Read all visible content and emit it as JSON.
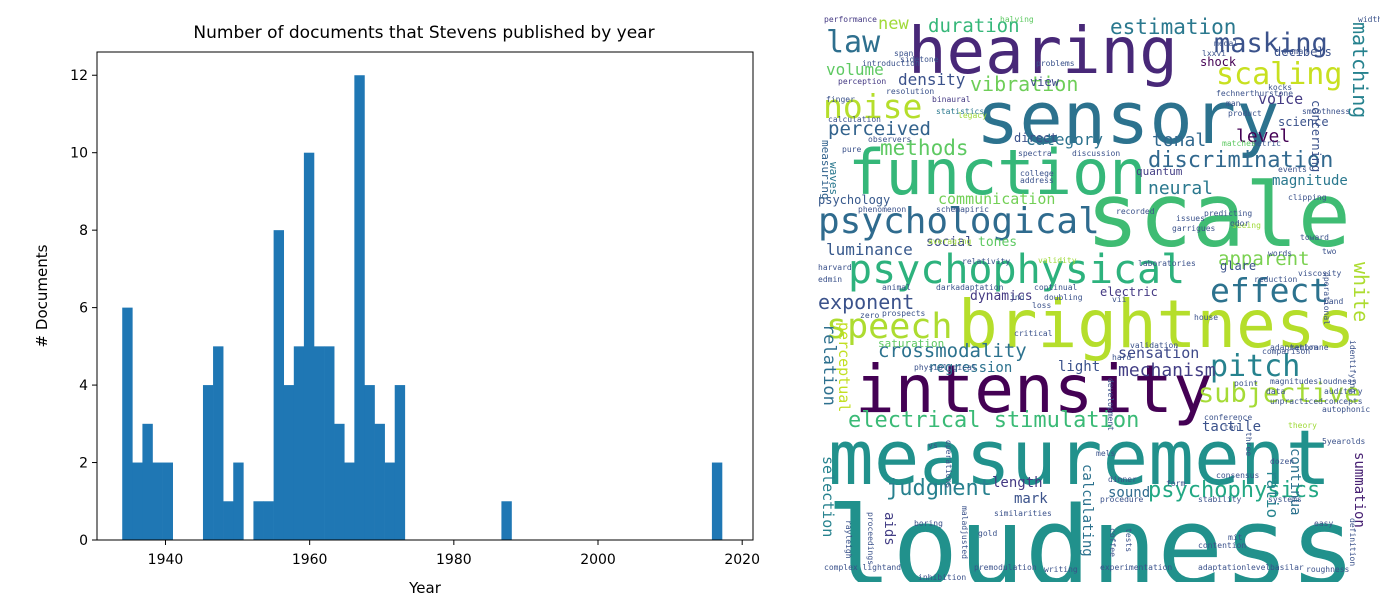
{
  "chart_data": {
    "type": "bar",
    "title": "Number of documents that Stevens published by year",
    "xlabel": "Year",
    "ylabel": "# Documents",
    "xlim": [
      1930.5,
      2021.5
    ],
    "ylim": [
      0,
      12.6
    ],
    "xticks": [
      1940,
      1960,
      1980,
      2000,
      2020
    ],
    "yticks": [
      0,
      2,
      4,
      6,
      8,
      10,
      12
    ],
    "bar_color": "#1f77b4",
    "bins": [
      {
        "start": 1934,
        "end": 1935.4,
        "value": 6
      },
      {
        "start": 1935.4,
        "end": 1936.8,
        "value": 2
      },
      {
        "start": 1936.8,
        "end": 1938.2,
        "value": 3
      },
      {
        "start": 1938.2,
        "end": 1939.6,
        "value": 2
      },
      {
        "start": 1939.6,
        "end": 1941,
        "value": 2
      },
      {
        "start": 1945.2,
        "end": 1946.6,
        "value": 4
      },
      {
        "start": 1946.6,
        "end": 1948,
        "value": 5
      },
      {
        "start": 1948,
        "end": 1949.4,
        "value": 1
      },
      {
        "start": 1949.4,
        "end": 1950.8,
        "value": 2
      },
      {
        "start": 1952.2,
        "end": 1953.6,
        "value": 1
      },
      {
        "start": 1953.6,
        "end": 1955,
        "value": 1
      },
      {
        "start": 1955,
        "end": 1956.4,
        "value": 8
      },
      {
        "start": 1956.4,
        "end": 1957.8,
        "value": 4
      },
      {
        "start": 1957.8,
        "end": 1959.2,
        "value": 5
      },
      {
        "start": 1959.2,
        "end": 1960.6,
        "value": 10
      },
      {
        "start": 1960.6,
        "end": 1962,
        "value": 5
      },
      {
        "start": 1962,
        "end": 1963.4,
        "value": 5
      },
      {
        "start": 1963.4,
        "end": 1964.8,
        "value": 3
      },
      {
        "start": 1964.8,
        "end": 1966.2,
        "value": 2
      },
      {
        "start": 1966.2,
        "end": 1967.6,
        "value": 12
      },
      {
        "start": 1967.6,
        "end": 1969,
        "value": 4
      },
      {
        "start": 1969,
        "end": 1970.4,
        "value": 3
      },
      {
        "start": 1970.4,
        "end": 1971.8,
        "value": 2
      },
      {
        "start": 1971.8,
        "end": 1973.2,
        "value": 4
      },
      {
        "start": 1986.6,
        "end": 1988,
        "value": 1
      },
      {
        "start": 2015.8,
        "end": 2017.2,
        "value": 2
      }
    ]
  },
  "wordcloud": {
    "words": [
      {
        "text": "loudness",
        "color": "#21918c"
      },
      {
        "text": "measurement",
        "color": "#21918c"
      },
      {
        "text": "intensity",
        "color": "#440154"
      },
      {
        "text": "brightness",
        "color": "#b5de2b"
      },
      {
        "text": "sensory",
        "color": "#2c728e"
      },
      {
        "text": "scale",
        "color": "#3fbc73"
      },
      {
        "text": "function",
        "color": "#35b779"
      },
      {
        "text": "hearing",
        "color": "#482878"
      },
      {
        "text": "psychophysical",
        "color": "#2db27d"
      },
      {
        "text": "psychological",
        "color": "#2f6b8e"
      },
      {
        "text": "speech",
        "color": "#addc30"
      },
      {
        "text": "effect",
        "color": "#2c728e"
      },
      {
        "text": "pitch",
        "color": "#26828e"
      },
      {
        "text": "noise",
        "color": "#b5de2b"
      },
      {
        "text": "law",
        "color": "#2e6f8e"
      },
      {
        "text": "masking",
        "color": "#3b528b"
      },
      {
        "text": "scaling",
        "color": "#c8e020"
      },
      {
        "text": "subjective",
        "color": "#a5db36"
      },
      {
        "text": "electrical stimulation",
        "color": "#3aba76"
      },
      {
        "text": "psychophysics",
        "color": "#22a884"
      },
      {
        "text": "judgment",
        "color": "#27808e"
      },
      {
        "text": "discrimination",
        "color": "#31688e"
      },
      {
        "text": "methods",
        "color": "#5ec962"
      },
      {
        "text": "perceived",
        "color": "#33638d"
      },
      {
        "text": "estimation",
        "color": "#2a788e"
      },
      {
        "text": "duration",
        "color": "#35b779"
      },
      {
        "text": "vibration",
        "color": "#6ece58"
      },
      {
        "text": "crossmodality",
        "color": "#2c728e"
      },
      {
        "text": "exponent",
        "color": "#3b528b"
      },
      {
        "text": "matching",
        "color": "#26828e"
      },
      {
        "text": "white",
        "color": "#addc30"
      },
      {
        "text": "apparent",
        "color": "#7ad151"
      },
      {
        "text": "neural",
        "color": "#2a788e"
      },
      {
        "text": "mechanism",
        "color": "#433e85"
      },
      {
        "text": "sensation",
        "color": "#3e4989"
      },
      {
        "text": "tonal",
        "color": "#31688e"
      },
      {
        "text": "level",
        "color": "#440154"
      },
      {
        "text": "category",
        "color": "#2c728e"
      },
      {
        "text": "density",
        "color": "#3b528b"
      },
      {
        "text": "volume",
        "color": "#5ec962"
      },
      {
        "text": "new",
        "color": "#a0da39"
      },
      {
        "text": "voice",
        "color": "#443a83"
      },
      {
        "text": "luminance",
        "color": "#38598c"
      },
      {
        "text": "communication",
        "color": "#73d056"
      },
      {
        "text": "magnitude",
        "color": "#2a788e"
      },
      {
        "text": "relation",
        "color": "#2d708e"
      },
      {
        "text": "perceptual",
        "color": "#c2df23"
      },
      {
        "text": "selection",
        "color": "#26828e"
      },
      {
        "text": "ratio",
        "color": "#25848e"
      },
      {
        "text": "continua",
        "color": "#2c728e"
      },
      {
        "text": "summation",
        "color": "#482173"
      },
      {
        "text": "regression",
        "color": "#2c728e"
      },
      {
        "text": "tactile",
        "color": "#3b528b"
      },
      {
        "text": "sound",
        "color": "#2f6b8e"
      },
      {
        "text": "length",
        "color": "#443983"
      },
      {
        "text": "mark",
        "color": "#3b528b"
      },
      {
        "text": "aids",
        "color": "#433e85"
      },
      {
        "text": "calculating",
        "color": "#2c728e"
      },
      {
        "text": "light",
        "color": "#3b528b"
      },
      {
        "text": "dynamics",
        "color": "#443983"
      },
      {
        "text": "tones",
        "color": "#5ec962"
      },
      {
        "text": "social",
        "color": "#3e4989"
      },
      {
        "text": "glare",
        "color": "#3b528b"
      },
      {
        "text": "electric",
        "color": "#443983"
      },
      {
        "text": "science",
        "color": "#3b528b"
      },
      {
        "text": "concerning",
        "color": "#3b528b"
      },
      {
        "text": "shock",
        "color": "#440154"
      },
      {
        "text": "view",
        "color": "#3e4989"
      },
      {
        "text": "quantum",
        "color": "#433e85"
      },
      {
        "text": "direct",
        "color": "#3b528b"
      },
      {
        "text": "psychology",
        "color": "#38598c"
      },
      {
        "text": "measuring",
        "color": "#33638d"
      },
      {
        "text": "waves",
        "color": "#2a788e"
      },
      {
        "text": "saturation",
        "color": "#5ec962"
      },
      {
        "text": "decibels",
        "color": "#3b528b"
      },
      {
        "text": "performance",
        "color": "#443983"
      },
      {
        "text": "introduction",
        "color": "#3b528b"
      },
      {
        "text": "perception",
        "color": "#443983"
      },
      {
        "text": "finger",
        "color": "#3b528b"
      },
      {
        "text": "calculation",
        "color": "#3b528b"
      },
      {
        "text": "binaural",
        "color": "#443983"
      },
      {
        "text": "statistics",
        "color": "#2a788e"
      },
      {
        "text": "legacy",
        "color": "#a0da39"
      },
      {
        "text": "resolution",
        "color": "#3b528b"
      },
      {
        "text": "sidetone",
        "color": "#3b528b"
      },
      {
        "text": "span",
        "color": "#3b528b"
      },
      {
        "text": "halving",
        "color": "#5ec962"
      },
      {
        "text": "problems",
        "color": "#3b528b"
      },
      {
        "text": "lxxvi",
        "color": "#3b528b"
      },
      {
        "text": "medal",
        "color": "#3b528b"
      },
      {
        "text": "human",
        "color": "#3b528b"
      },
      {
        "text": "width",
        "color": "#3b528b"
      },
      {
        "text": "fechnerthurstone",
        "color": "#3b528b"
      },
      {
        "text": "kocks",
        "color": "#3b528b"
      },
      {
        "text": "smoothness",
        "color": "#3b528b"
      },
      {
        "text": "metric",
        "color": "#3b528b"
      },
      {
        "text": "man",
        "color": "#3b528b"
      },
      {
        "text": "product",
        "color": "#3b528b"
      },
      {
        "text": "matches",
        "color": "#5ec962"
      },
      {
        "text": "events",
        "color": "#3b528b"
      },
      {
        "text": "clipping",
        "color": "#3b528b"
      },
      {
        "text": "toward",
        "color": "#3b528b"
      },
      {
        "text": "two",
        "color": "#3b528b"
      },
      {
        "text": "band",
        "color": "#3b528b"
      },
      {
        "text": "viscosity",
        "color": "#3b528b"
      },
      {
        "text": "reduction",
        "color": "#3b528b"
      },
      {
        "text": "words",
        "color": "#3b528b"
      },
      {
        "text": "seeing",
        "color": "#a0da39"
      },
      {
        "text": "issues",
        "color": "#3b528b"
      },
      {
        "text": "garrigues",
        "color": "#3b528b"
      },
      {
        "text": "predicting",
        "color": "#3b528b"
      },
      {
        "text": "recorded",
        "color": "#3b528b"
      },
      {
        "text": "odor",
        "color": "#3b528b"
      },
      {
        "text": "address",
        "color": "#3b528b"
      },
      {
        "text": "spectra",
        "color": "#3b528b"
      },
      {
        "text": "discussion",
        "color": "#3b528b"
      },
      {
        "text": "college",
        "color": "#3b528b"
      },
      {
        "text": "phenomenon",
        "color": "#3b528b"
      },
      {
        "text": "schemapiric",
        "color": "#3b528b"
      },
      {
        "text": "observers",
        "color": "#3b528b"
      },
      {
        "text": "pure",
        "color": "#3b528b"
      },
      {
        "text": "averaging",
        "color": "#a0da39"
      },
      {
        "text": "relativity",
        "color": "#3b528b"
      },
      {
        "text": "validity",
        "color": "#a0da39"
      },
      {
        "text": "laboratories",
        "color": "#3b528b"
      },
      {
        "text": "harvard",
        "color": "#3b528b"
      },
      {
        "text": "edmin",
        "color": "#3b528b"
      },
      {
        "text": "animal",
        "color": "#3b528b"
      },
      {
        "text": "darkadaptation",
        "color": "#3b528b"
      },
      {
        "text": "continual",
        "color": "#3b528b"
      },
      {
        "text": "jnd",
        "color": "#3b528b"
      },
      {
        "text": "doubling",
        "color": "#3b528b"
      },
      {
        "text": "vii",
        "color": "#3b528b"
      },
      {
        "text": "loss",
        "color": "#3b528b"
      },
      {
        "text": "house",
        "color": "#3b528b"
      },
      {
        "text": "zero",
        "color": "#3b528b"
      },
      {
        "text": "prospects",
        "color": "#3b528b"
      },
      {
        "text": "critical",
        "color": "#3b528b"
      },
      {
        "text": "operational",
        "color": "#3b528b"
      },
      {
        "text": "membrane",
        "color": "#3b528b"
      },
      {
        "text": "adaptation",
        "color": "#3b528b"
      },
      {
        "text": "identifying",
        "color": "#3b528b"
      },
      {
        "text": "validation",
        "color": "#3b528b"
      },
      {
        "text": "comparison",
        "color": "#3b528b"
      },
      {
        "text": "hard",
        "color": "#3b528b"
      },
      {
        "text": "physiological",
        "color": "#3b528b"
      },
      {
        "text": "development",
        "color": "#3b528b"
      },
      {
        "text": "point",
        "color": "#3b528b"
      },
      {
        "text": "magnitudesloudness",
        "color": "#3b528b"
      },
      {
        "text": "data",
        "color": "#3b528b"
      },
      {
        "text": "auditory",
        "color": "#3b528b"
      },
      {
        "text": "concepts",
        "color": "#3b528b"
      },
      {
        "text": "unpracticed",
        "color": "#3b528b"
      },
      {
        "text": "autophonic",
        "color": "#3b528b"
      },
      {
        "text": "conference",
        "color": "#3b528b"
      },
      {
        "text": "ten",
        "color": "#3b528b"
      },
      {
        "text": "theory",
        "color": "#a0da39"
      },
      {
        "text": "5yearolds",
        "color": "#3b528b"
      },
      {
        "text": "three",
        "color": "#3b528b"
      },
      {
        "text": "mels",
        "color": "#3b528b"
      },
      {
        "text": "dozen",
        "color": "#3b528b"
      },
      {
        "text": "vs",
        "color": "#3b528b"
      },
      {
        "text": "operations",
        "color": "#3b528b"
      },
      {
        "text": "dinner",
        "color": "#3b528b"
      },
      {
        "text": "form",
        "color": "#3b528b"
      },
      {
        "text": "consensus",
        "color": "#3b528b"
      },
      {
        "text": "procedure",
        "color": "#3b528b"
      },
      {
        "text": "stability",
        "color": "#3b528b"
      },
      {
        "text": "systems",
        "color": "#3b528b"
      },
      {
        "text": "easy",
        "color": "#3b528b"
      },
      {
        "text": "similarities",
        "color": "#3b528b"
      },
      {
        "text": "rayleigh",
        "color": "#3b528b"
      },
      {
        "text": "proceedings",
        "color": "#3b528b"
      },
      {
        "text": "boring",
        "color": "#3b528b"
      },
      {
        "text": "maladjusted",
        "color": "#3b528b"
      },
      {
        "text": "gold",
        "color": "#3b528b"
      },
      {
        "text": "coffee",
        "color": "#3b528b"
      },
      {
        "text": "tests",
        "color": "#3b528b"
      },
      {
        "text": "mit",
        "color": "#3b528b"
      },
      {
        "text": "contention",
        "color": "#3b528b"
      },
      {
        "text": "definition",
        "color": "#3b528b"
      },
      {
        "text": "complex lightand",
        "color": "#3b528b"
      },
      {
        "text": "inhibition",
        "color": "#3b528b"
      },
      {
        "text": "premodulation",
        "color": "#3b528b"
      },
      {
        "text": "writing",
        "color": "#3b528b"
      },
      {
        "text": "experimentation",
        "color": "#3b528b"
      },
      {
        "text": "adaptationlevel",
        "color": "#3b528b"
      },
      {
        "text": "basilar",
        "color": "#3b528b"
      },
      {
        "text": "roughness",
        "color": "#3b528b"
      }
    ]
  }
}
